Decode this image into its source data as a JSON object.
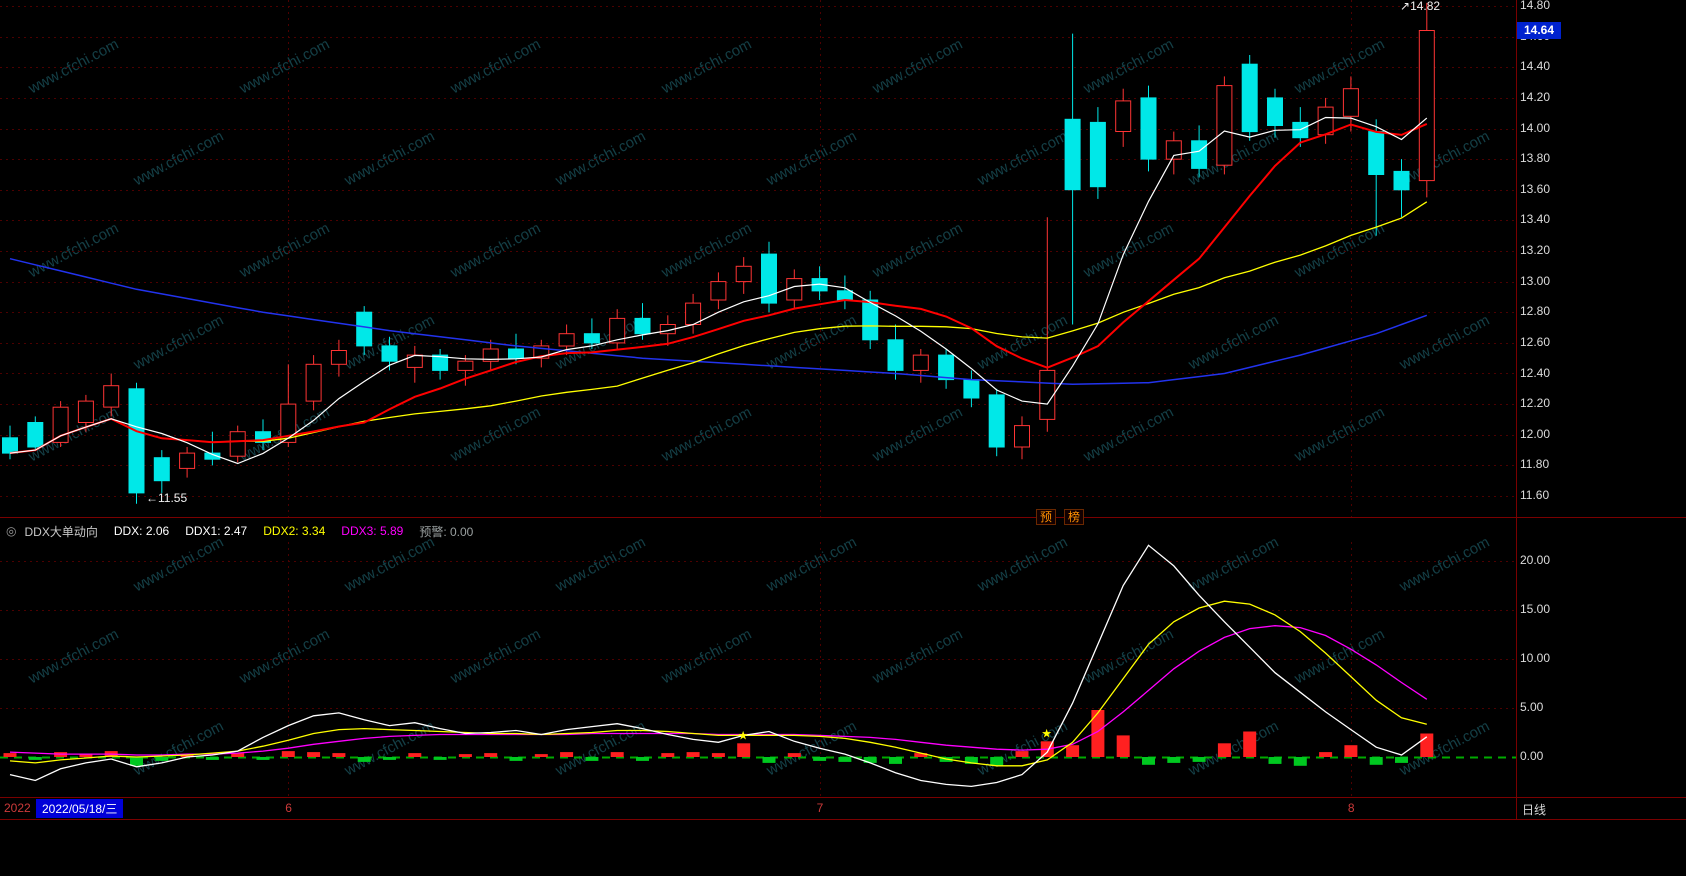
{
  "watermark": {
    "text": "www.cfchi.com"
  },
  "top_panel": {
    "y_axis": {
      "max": 14.8,
      "min": 11.6,
      "step": 0.2,
      "labels": [
        "14.80",
        "14.60",
        "14.40",
        "14.20",
        "14.00",
        "13.80",
        "13.60",
        "13.40",
        "13.20",
        "13.00",
        "12.80",
        "12.60",
        "12.40",
        "12.20",
        "12.00",
        "11.80",
        "11.60"
      ]
    },
    "price_tag": {
      "value": "14.64",
      "bg": "#0022cf"
    },
    "high_marker": {
      "arrow": "↗",
      "text": "14.82",
      "index": 56
    },
    "low_marker": {
      "arrow": "←",
      "text": "11.55",
      "index": 5
    },
    "divider_buttons": [
      {
        "label": "预"
      },
      {
        "label": "榜"
      }
    ]
  },
  "indicator_header": {
    "collapse_icon": "◎",
    "fields": [
      {
        "text": "DDX大单动向",
        "color": "#c8c8c8",
        "name": "indicator-name"
      },
      {
        "text": "DDX: 2.06",
        "color": "#ffffff",
        "name": "ddx-value"
      },
      {
        "text": "DDX1: 2.47",
        "color": "#ffffff",
        "name": "ddx1-value"
      },
      {
        "text": "DDX2: 3.34",
        "color": "#ffff00",
        "name": "ddx2-value"
      },
      {
        "text": "DDX3: 5.89",
        "color": "#ff00ff",
        "name": "ddx3-value"
      },
      {
        "text": "预警: 0.00",
        "color": "#9aa0a0",
        "name": "alert-value"
      }
    ]
  },
  "status_bar": {
    "year": "2022",
    "date_box": "2022/05/18/三",
    "period": "日线"
  },
  "colors": {
    "up": "#ff3434",
    "down": "#00e8e8",
    "grid": "#4d0000",
    "ma5": "#ffffff",
    "ma10": "#ff0000",
    "ma20": "#ffff00",
    "ma60": "#2233ee",
    "bar_up": "#ff2020",
    "bar_down": "#00c820",
    "zero_line": "#00aa00",
    "star": "#ffff00"
  },
  "chart_data": [
    {
      "type": "candlestick",
      "title": "K线(日线)",
      "ylim": [
        11.55,
        14.85
      ],
      "x_month_ticks": [
        {
          "label": "6",
          "index": 11
        },
        {
          "label": "7",
          "index": 32
        },
        {
          "label": "8",
          "index": 53
        }
      ],
      "markers": {
        "high_price": 14.82,
        "low_price": 11.55,
        "last_price": 14.64
      },
      "candles": {
        "up_color": "#ff3434",
        "down_color": "#00e8e8",
        "ohlc": [
          [
            11.98,
            12.06,
            11.84,
            11.88
          ],
          [
            12.08,
            12.12,
            11.9,
            11.92
          ],
          [
            11.95,
            12.22,
            11.92,
            12.18
          ],
          [
            12.08,
            12.26,
            12.02,
            12.22
          ],
          [
            12.18,
            12.4,
            12.12,
            12.32
          ],
          [
            12.3,
            12.34,
            11.55,
            11.62
          ],
          [
            11.85,
            11.9,
            11.62,
            11.7
          ],
          [
            11.78,
            11.92,
            11.72,
            11.88
          ],
          [
            11.88,
            12.02,
            11.8,
            11.84
          ],
          [
            11.86,
            12.06,
            11.82,
            12.02
          ],
          [
            12.02,
            12.1,
            11.9,
            11.95
          ],
          [
            11.95,
            12.46,
            11.92,
            12.2
          ],
          [
            12.22,
            12.52,
            12.16,
            12.46
          ],
          [
            12.46,
            12.62,
            12.38,
            12.55
          ],
          [
            12.8,
            12.84,
            12.52,
            12.58
          ],
          [
            12.58,
            12.64,
            12.42,
            12.48
          ],
          [
            12.44,
            12.58,
            12.34,
            12.52
          ],
          [
            12.52,
            12.56,
            12.36,
            12.42
          ],
          [
            12.42,
            12.52,
            12.32,
            12.48
          ],
          [
            12.48,
            12.62,
            12.42,
            12.56
          ],
          [
            12.56,
            12.66,
            12.46,
            12.5
          ],
          [
            12.5,
            12.62,
            12.44,
            12.58
          ],
          [
            12.58,
            12.72,
            12.52,
            12.66
          ],
          [
            12.66,
            12.76,
            12.56,
            12.6
          ],
          [
            12.6,
            12.82,
            12.56,
            12.76
          ],
          [
            12.76,
            12.86,
            12.62,
            12.66
          ],
          [
            12.66,
            12.78,
            12.58,
            12.72
          ],
          [
            12.72,
            12.92,
            12.66,
            12.86
          ],
          [
            12.88,
            13.06,
            12.82,
            13.0
          ],
          [
            13.0,
            13.16,
            12.92,
            13.1
          ],
          [
            13.18,
            13.26,
            12.8,
            12.86
          ],
          [
            12.88,
            13.08,
            12.82,
            13.02
          ],
          [
            13.02,
            13.1,
            12.88,
            12.94
          ],
          [
            12.94,
            13.04,
            12.82,
            12.88
          ],
          [
            12.88,
            12.94,
            12.56,
            12.62
          ],
          [
            12.62,
            12.72,
            12.36,
            12.42
          ],
          [
            12.42,
            12.56,
            12.34,
            12.52
          ],
          [
            12.52,
            12.56,
            12.3,
            12.36
          ],
          [
            12.36,
            12.42,
            12.18,
            12.24
          ],
          [
            12.26,
            12.3,
            11.86,
            11.92
          ],
          [
            11.92,
            12.12,
            11.84,
            12.06
          ],
          [
            12.1,
            13.42,
            12.02,
            12.42
          ],
          [
            14.06,
            14.62,
            12.72,
            13.6
          ],
          [
            14.04,
            14.14,
            13.54,
            13.62
          ],
          [
            13.98,
            14.26,
            13.88,
            14.18
          ],
          [
            14.2,
            14.28,
            13.72,
            13.8
          ],
          [
            13.8,
            13.98,
            13.7,
            13.92
          ],
          [
            13.92,
            14.02,
            13.68,
            13.74
          ],
          [
            13.76,
            14.34,
            13.7,
            14.28
          ],
          [
            14.42,
            14.48,
            13.92,
            13.98
          ],
          [
            14.2,
            14.26,
            13.94,
            14.02
          ],
          [
            14.04,
            14.14,
            13.88,
            13.94
          ],
          [
            13.96,
            14.2,
            13.9,
            14.14
          ],
          [
            14.08,
            14.34,
            13.98,
            14.26
          ],
          [
            13.98,
            14.06,
            13.3,
            13.7
          ],
          [
            13.72,
            13.8,
            13.42,
            13.6
          ],
          [
            13.66,
            14.82,
            13.55,
            14.64
          ]
        ]
      },
      "ma_lines": [
        {
          "name": "MA5",
          "color": "#ffffff",
          "window": 5
        },
        {
          "name": "MA10",
          "color": "#ff0000",
          "window": 10
        },
        {
          "name": "MA20",
          "color": "#ffff00",
          "window": 20
        },
        {
          "name": "MA60",
          "color": "#2233ee",
          "anchors": [
            [
              0,
              13.15
            ],
            [
              5,
              12.95
            ],
            [
              10,
              12.8
            ],
            [
              15,
              12.68
            ],
            [
              20,
              12.58
            ],
            [
              25,
              12.5
            ],
            [
              30,
              12.45
            ],
            [
              35,
              12.4
            ],
            [
              38,
              12.36
            ],
            [
              42,
              12.33
            ],
            [
              45,
              12.34
            ],
            [
              48,
              12.4
            ],
            [
              51,
              12.52
            ],
            [
              54,
              12.66
            ],
            [
              56,
              12.78
            ]
          ]
        }
      ]
    },
    {
      "type": "bar+line",
      "title": "DDX大单动向",
      "ylim": [
        -4,
        22
      ],
      "yticks": [
        {
          "v": 20,
          "label": "20.00"
        },
        {
          "v": 15,
          "label": "15.00"
        },
        {
          "v": 10,
          "label": "10.00"
        },
        {
          "v": 5,
          "label": "5.00"
        },
        {
          "v": 0,
          "label": "0.00"
        }
      ],
      "zero_line_dashed_green": true,
      "bars": [
        0.4,
        -0.3,
        0.5,
        0.3,
        0.6,
        -0.9,
        -0.4,
        0.3,
        -0.3,
        0.4,
        -0.3,
        0.6,
        0.5,
        0.4,
        -0.5,
        -0.3,
        0.4,
        -0.3,
        0.3,
        0.4,
        -0.4,
        0.3,
        0.5,
        -0.4,
        0.5,
        -0.4,
        0.4,
        0.5,
        0.4,
        1.4,
        -0.6,
        0.4,
        -0.4,
        -0.5,
        -0.6,
        -0.7,
        0.4,
        -0.5,
        -0.7,
        -0.9,
        0.6,
        1.6,
        1.2,
        4.8,
        2.2,
        -0.8,
        -0.6,
        -0.5,
        1.4,
        2.6,
        -0.7,
        -0.9,
        0.5,
        1.2,
        -0.8,
        -0.6,
        2.4
      ],
      "series": [
        {
          "name": "DDX",
          "color": "#ffffff",
          "values": [
            -1.8,
            -2.4,
            -1.2,
            -0.6,
            -0.2,
            -1.0,
            -0.6,
            0.0,
            0.2,
            0.6,
            2.0,
            3.2,
            4.2,
            4.5,
            3.8,
            3.2,
            3.5,
            2.9,
            2.4,
            2.5,
            2.7,
            2.3,
            2.8,
            3.1,
            3.4,
            2.9,
            2.3,
            1.8,
            1.5,
            2.2,
            2.6,
            1.6,
            0.9,
            0.3,
            -0.6,
            -1.6,
            -2.4,
            -2.8,
            -3.0,
            -2.6,
            -1.8,
            0.5,
            5.5,
            11.5,
            17.5,
            21.6,
            19.5,
            16.5,
            13.8,
            11.2,
            8.6,
            6.6,
            4.6,
            2.8,
            1.0,
            0.2,
            2.06
          ]
        },
        {
          "name": "DDX2",
          "color": "#ffff00",
          "values": [
            -0.4,
            -0.6,
            -0.3,
            -0.1,
            0.1,
            0.0,
            0.1,
            0.2,
            0.4,
            0.6,
            1.1,
            1.7,
            2.4,
            2.8,
            2.9,
            2.8,
            2.7,
            2.6,
            2.5,
            2.4,
            2.4,
            2.3,
            2.4,
            2.5,
            2.7,
            2.7,
            2.6,
            2.4,
            2.2,
            2.2,
            2.2,
            2.2,
            2.1,
            1.9,
            1.5,
            1.0,
            0.4,
            -0.2,
            -0.6,
            -0.9,
            -0.9,
            -0.3,
            1.5,
            4.5,
            8.0,
            11.5,
            13.8,
            15.2,
            15.9,
            15.6,
            14.5,
            12.8,
            10.6,
            8.2,
            5.8,
            4.0,
            3.34
          ]
        },
        {
          "name": "DDX3",
          "color": "#ff00ff",
          "values": [
            0.5,
            0.4,
            0.3,
            0.3,
            0.3,
            0.2,
            0.2,
            0.3,
            0.3,
            0.4,
            0.6,
            0.9,
            1.3,
            1.6,
            1.9,
            2.1,
            2.2,
            2.3,
            2.3,
            2.3,
            2.3,
            2.3,
            2.3,
            2.4,
            2.4,
            2.4,
            2.4,
            2.4,
            2.3,
            2.3,
            2.3,
            2.3,
            2.2,
            2.1,
            2.0,
            1.8,
            1.5,
            1.2,
            1.0,
            0.8,
            0.7,
            0.8,
            1.3,
            2.6,
            4.6,
            6.8,
            9.0,
            10.8,
            12.2,
            13.1,
            13.4,
            13.2,
            12.4,
            11.0,
            9.4,
            7.6,
            5.89
          ]
        }
      ],
      "star_indices": [
        29,
        41
      ]
    }
  ]
}
